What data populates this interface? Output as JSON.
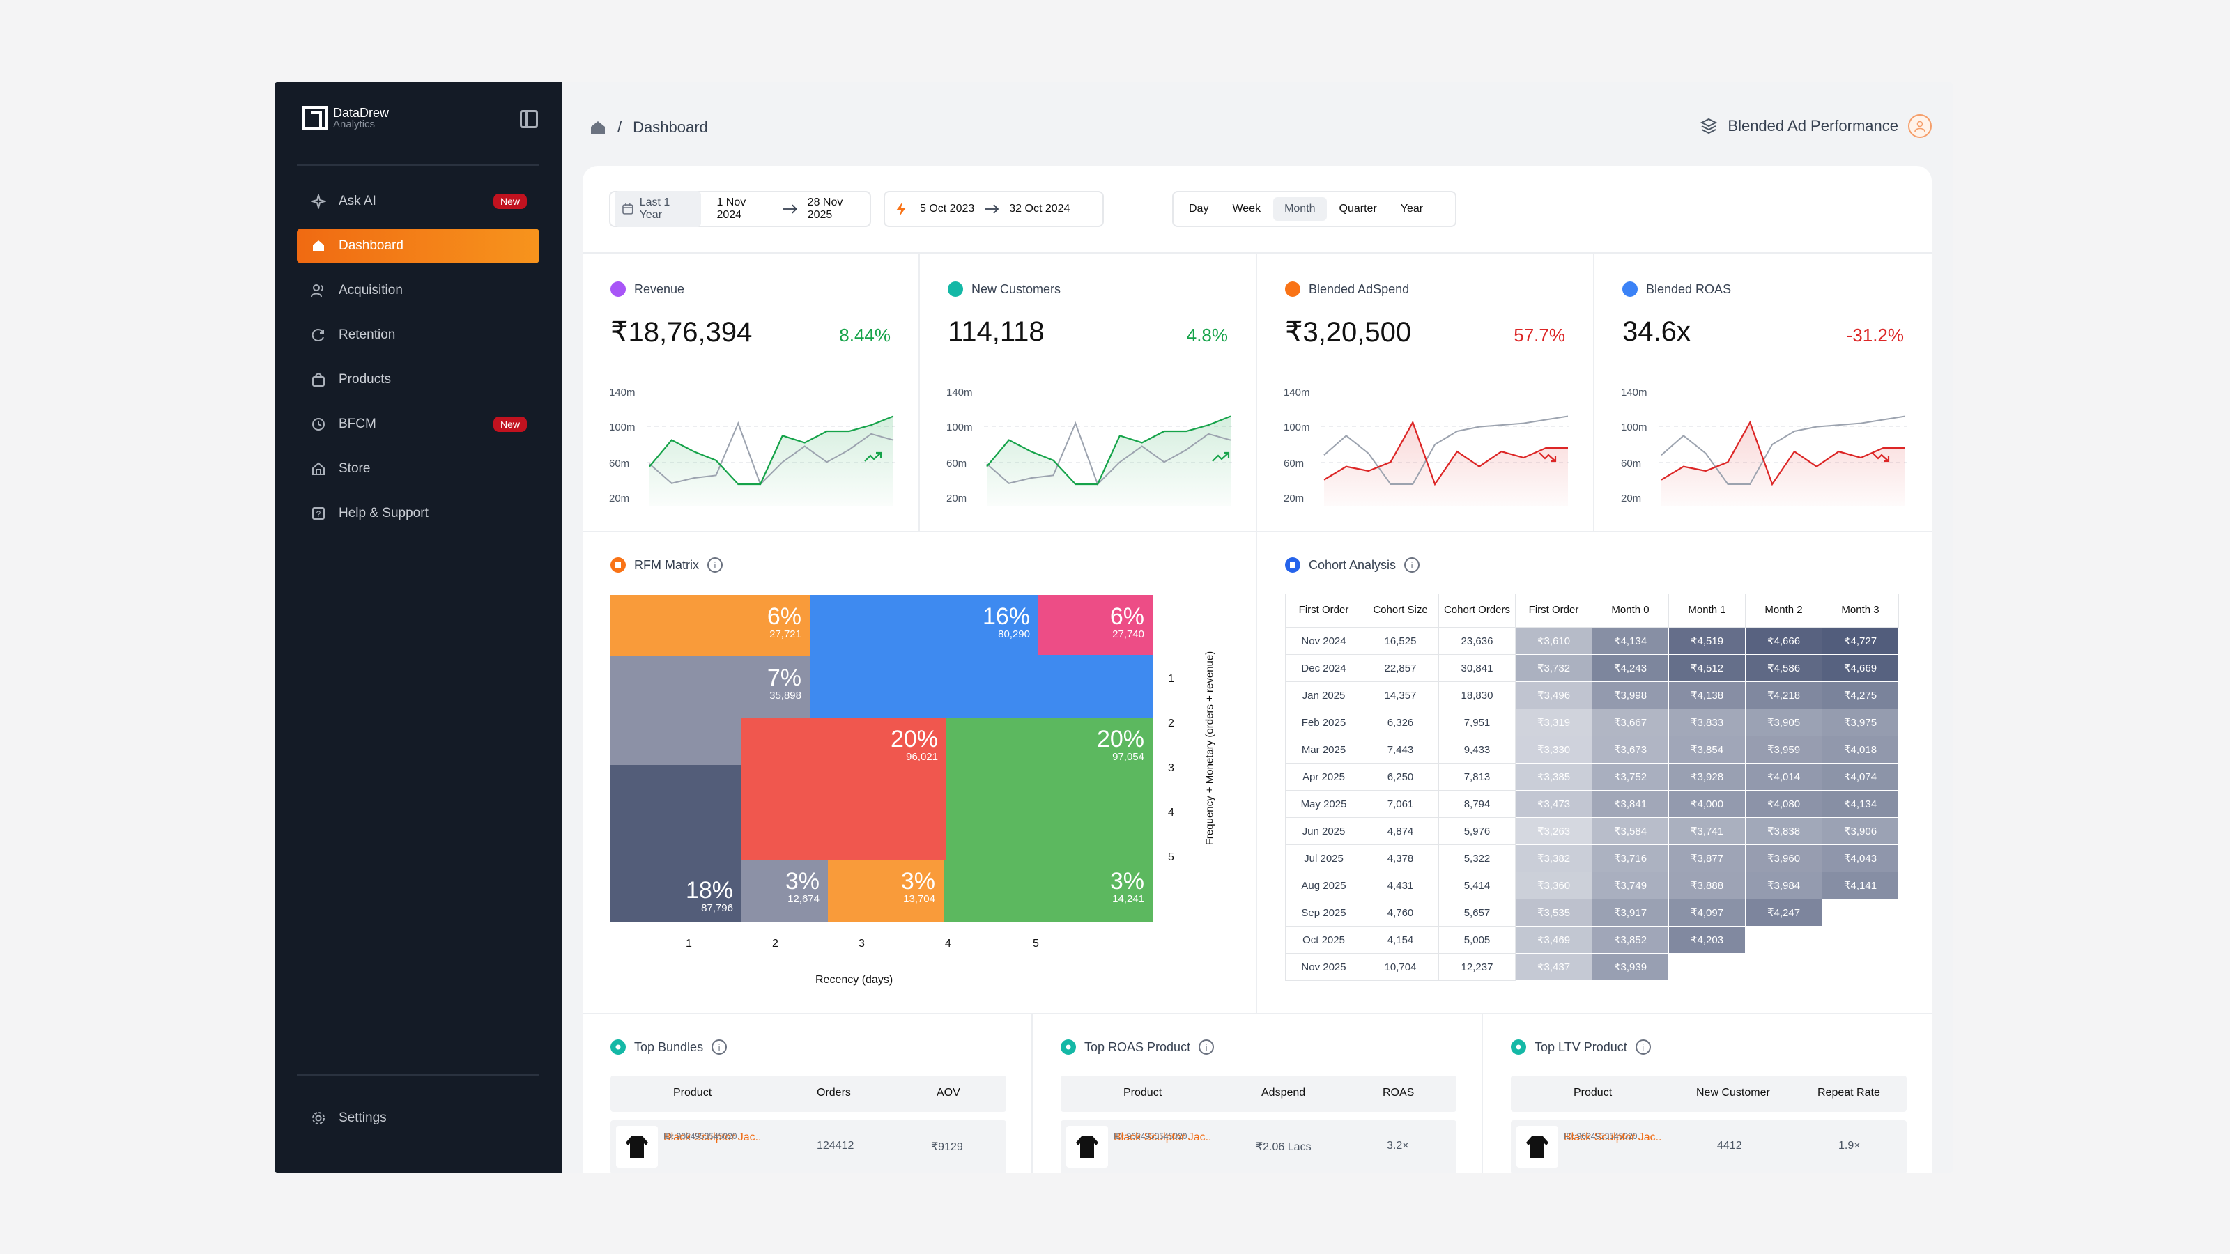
{
  "brand": {
    "name": "DataDrew",
    "sub": "Analytics"
  },
  "sidebar": {
    "items": [
      {
        "label": "Ask AI",
        "badge": "New"
      },
      {
        "label": "Dashboard"
      },
      {
        "label": "Acquisition"
      },
      {
        "label": "Retention"
      },
      {
        "label": "Products"
      },
      {
        "label": "BFCM",
        "badge": "New"
      },
      {
        "label": "Store"
      },
      {
        "label": "Help & Support"
      }
    ],
    "settings": "Settings"
  },
  "breadcrumb": {
    "sep": "/",
    "page": "Dashboard"
  },
  "topright": {
    "label": "Blended Ad Performance"
  },
  "filters": {
    "preset": "Last 1 Year",
    "from": "1 Nov 2024",
    "to": "28 Nov 2025",
    "cmp_from": "5 Oct 2023",
    "cmp_to": "32 Oct 2024",
    "granularity": [
      "Day",
      "Week",
      "Month",
      "Quarter",
      "Year"
    ],
    "selected": "Month"
  },
  "kpis": [
    {
      "title": "Revenue",
      "value": "₹18,76,394",
      "change": "8.44%",
      "dir": "up",
      "color": "#a855f7",
      "line": "#16a34a",
      "cur": [
        55,
        85,
        72,
        62,
        35,
        35,
        90,
        82,
        95,
        95,
        102,
        112
      ],
      "prev": [
        58,
        36,
        42,
        45,
        104,
        35,
        60,
        78,
        60,
        74,
        92,
        85
      ]
    },
    {
      "title": "New Customers",
      "value": "114,118",
      "change": "4.8%",
      "dir": "up",
      "color": "#14b8a6",
      "line": "#16a34a",
      "cur": [
        55,
        85,
        72,
        62,
        35,
        35,
        90,
        82,
        95,
        95,
        102,
        112
      ],
      "prev": [
        58,
        36,
        42,
        45,
        104,
        35,
        60,
        78,
        60,
        74,
        92,
        85
      ]
    },
    {
      "title": "Blended AdSpend",
      "value": "₹3,20,500",
      "change": "57.7%",
      "dir": "down",
      "color": "#f97316",
      "line": "#dc2626",
      "cur": [
        40,
        55,
        50,
        60,
        105,
        35,
        72,
        55,
        72,
        65,
        76,
        76
      ],
      "prev": [
        68,
        90,
        70,
        35,
        35,
        80,
        95,
        100,
        102,
        104,
        108,
        112
      ]
    },
    {
      "title": "Blended ROAS",
      "value": "34.6x",
      "change": "-31.2%",
      "dir": "down",
      "color": "#3b82f6",
      "line": "#dc2626",
      "cur": [
        40,
        55,
        50,
        60,
        105,
        35,
        72,
        55,
        72,
        65,
        76,
        76
      ],
      "prev": [
        68,
        90,
        70,
        35,
        35,
        80,
        95,
        100,
        102,
        104,
        108,
        112
      ]
    }
  ],
  "kpi_axis": [
    "140m",
    "100m",
    "60m",
    "20m"
  ],
  "rfm": {
    "title": "RFM Matrix",
    "info": "i",
    "xlabel": "Recency (days)",
    "ylabel": "Frequency + Monetary (orders + revenue)",
    "xticks": [
      "1",
      "2",
      "3",
      "4",
      "5"
    ],
    "yticks": [
      "1",
      "2",
      "3",
      "4",
      "5"
    ],
    "cells": [
      {
        "pct": "6%",
        "n": "27,721"
      },
      {
        "pct": "16%",
        "n": "80,290"
      },
      {
        "pct": "6%",
        "n": "27,740"
      },
      {
        "pct": "7%",
        "n": "35,898"
      },
      {
        "pct": "20%",
        "n": "96,021"
      },
      {
        "pct": "20%",
        "n": "97,054"
      },
      {
        "pct": "18%",
        "n": "87,796"
      },
      {
        "pct": "3%",
        "n": "12,674"
      },
      {
        "pct": "3%",
        "n": "13,704"
      },
      {
        "pct": "3%",
        "n": "14,241"
      }
    ]
  },
  "cohort": {
    "title": "Cohort Analysis",
    "info": "i",
    "headers": [
      "First Order",
      "Cohort Size",
      "Cohort Orders",
      "First Order",
      "Month 0",
      "Month 1",
      "Month 2",
      "Month 3"
    ],
    "rows": [
      [
        "Nov 2024",
        "16,525",
        "23,636",
        "₹3,610",
        "₹4,134",
        "₹4,519",
        "₹4,666",
        "₹4,727"
      ],
      [
        "Dec 2024",
        "22,857",
        "30,841",
        "₹3,732",
        "₹4,243",
        "₹4,512",
        "₹4,586",
        "₹4,669"
      ],
      [
        "Jan 2025",
        "14,357",
        "18,830",
        "₹3,496",
        "₹3,998",
        "₹4,138",
        "₹4,218",
        "₹4,275"
      ],
      [
        "Feb 2025",
        "6,326",
        "7,951",
        "₹3,319",
        "₹3,667",
        "₹3,833",
        "₹3,905",
        "₹3,975"
      ],
      [
        "Mar 2025",
        "7,443",
        "9,433",
        "₹3,330",
        "₹3,673",
        "₹3,854",
        "₹3,959",
        "₹4,018"
      ],
      [
        "Apr 2025",
        "6,250",
        "7,813",
        "₹3,385",
        "₹3,752",
        "₹3,928",
        "₹4,014",
        "₹4,074"
      ],
      [
        "May 2025",
        "7,061",
        "8,794",
        "₹3,473",
        "₹3,841",
        "₹4,000",
        "₹4,080",
        "₹4,134"
      ],
      [
        "Jun 2025",
        "4,874",
        "5,976",
        "₹3,263",
        "₹3,584",
        "₹3,741",
        "₹3,838",
        "₹3,906"
      ],
      [
        "Jul 2025",
        "4,378",
        "5,322",
        "₹3,382",
        "₹3,716",
        "₹3,877",
        "₹3,960",
        "₹4,043"
      ],
      [
        "Aug 2025",
        "4,431",
        "5,414",
        "₹3,360",
        "₹3,749",
        "₹3,888",
        "₹3,984",
        "₹4,141"
      ],
      [
        "Sep 2025",
        "4,760",
        "5,657",
        "₹3,535",
        "₹3,917",
        "₹4,097",
        "₹4,247",
        ""
      ],
      [
        "Oct 2025",
        "4,154",
        "5,005",
        "₹3,469",
        "₹3,852",
        "₹4,203",
        "",
        ""
      ],
      [
        "Nov 2025",
        "10,704",
        "12,237",
        "₹3,437",
        "₹3,939",
        "",
        "",
        ""
      ]
    ]
  },
  "bundles": {
    "title": "Top Bundles",
    "info": "i",
    "cols": [
      "Product",
      "Orders",
      "AOV"
    ],
    "row": {
      "name": "Black Sculptor Jac..",
      "id": "ID: 9064953545020",
      "c1": "124412",
      "c2": "₹9129"
    }
  },
  "roas": {
    "title": "Top ROAS Product",
    "info": "i",
    "cols": [
      "Product",
      "Adspend",
      "ROAS"
    ],
    "row": {
      "name": "Black Sculptor Jac..",
      "id": "ID: 9064953545020",
      "c1": "₹2.06 Lacs",
      "c2": "3.2×"
    }
  },
  "ltv": {
    "title": "Top LTV Product",
    "info": "i",
    "cols": [
      "Product",
      "New Customer",
      "Repeat Rate"
    ],
    "row": {
      "name": "Black Sculptor Jac..",
      "id": "ID: 9064953545020",
      "c1": "4412",
      "c2": "1.9×"
    }
  }
}
